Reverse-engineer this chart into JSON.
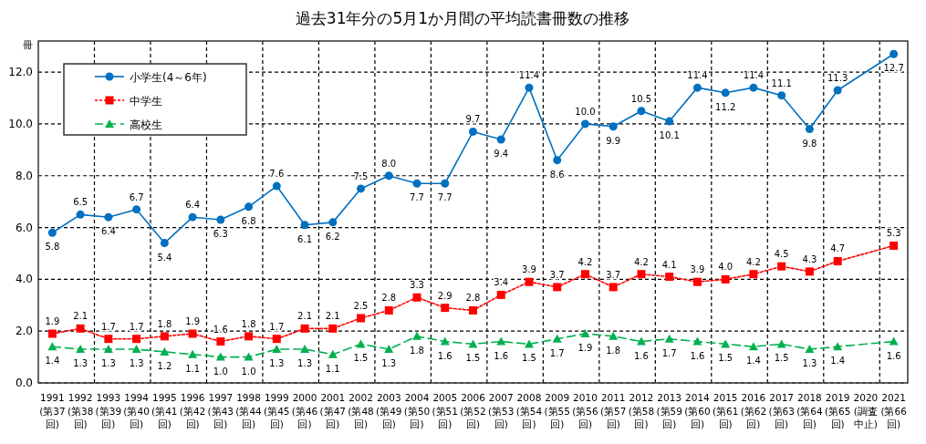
{
  "chart_data": {
    "type": "line",
    "title": "過去31年分の5月1か月間の平均読書冊数の推移",
    "ylabel": "冊",
    "categories": [
      "1991(第37回)",
      "1992(第38回)",
      "1993(第39回)",
      "1994(第40回)",
      "1995(第41回)",
      "1996(第42回)",
      "1997(第43回)",
      "1998(第44回)",
      "1999(第45回)",
      "2000(第46回)",
      "2001(第47回)",
      "2002(第48回)",
      "2003(第49回)",
      "2004(第50回)",
      "2005(第51回)",
      "2006(第52回)",
      "2007(第53回)",
      "2008(第54回)",
      "2009(第55回)",
      "2010(第56回)",
      "2011(第57回)",
      "2012(第58回)",
      "2013(第59回)",
      "2014(第60回)",
      "2015(第61回)",
      "2016(第62回)",
      "2017(第63回)",
      "2018(第64回)",
      "2019(第65回)",
      "2020(調査中止)",
      "2021(第66回)"
    ],
    "series": [
      {
        "name": "小学生(4～6年)",
        "color": "#0070c0",
        "marker": "circle",
        "line_style": "solid",
        "values": [
          5.8,
          6.5,
          6.4,
          6.7,
          5.4,
          6.4,
          6.3,
          6.8,
          7.6,
          6.1,
          6.2,
          7.5,
          8.0,
          7.7,
          7.7,
          9.7,
          9.4,
          11.4,
          8.6,
          10.0,
          9.9,
          10.5,
          10.1,
          11.4,
          11.2,
          11.4,
          11.1,
          9.8,
          11.3,
          null,
          12.7
        ],
        "value_labels": [
          "5.8",
          "6.5",
          "6.4",
          "6.7",
          "5.4",
          "6.4",
          "6.3",
          "6.8",
          "7.6",
          "6.1",
          "6.2",
          "7.5",
          "8.0",
          "7.7",
          "7.7",
          "9.7",
          "9.4",
          "11.4",
          "8.6",
          "10.0",
          "9.9",
          "10.5",
          "10.1",
          "11.4",
          "11.2",
          "11.4",
          "11.1",
          "9.8",
          "11.3",
          null,
          "12.7"
        ]
      },
      {
        "name": "中学生",
        "color": "#ff0000",
        "marker": "square",
        "line_style": "dotted",
        "values": [
          1.9,
          2.1,
          1.7,
          1.7,
          1.8,
          1.9,
          1.6,
          1.8,
          1.7,
          2.1,
          2.1,
          2.5,
          2.8,
          3.3,
          2.9,
          2.8,
          3.4,
          3.9,
          3.7,
          4.2,
          3.7,
          4.2,
          4.1,
          3.9,
          4.0,
          4.2,
          4.5,
          4.3,
          4.7,
          null,
          5.3
        ],
        "value_labels": [
          "1.9",
          "2.1",
          "1.7",
          "1.7",
          "1.8",
          "1.9",
          "1.6",
          "1.8",
          "1.7",
          "2.1",
          "2.1",
          "2.5",
          "2.8",
          "3.3",
          "2.9",
          "2.8",
          "3.4",
          "3.9",
          "3.7",
          "4.2",
          "3.7",
          "4.2",
          "4.1",
          "3.9",
          "4.0",
          "4.2",
          "4.5",
          "4.3",
          "4.7",
          null,
          "5.3"
        ]
      },
      {
        "name": "高校生",
        "color": "#00b050",
        "marker": "triangle",
        "line_style": "dashed",
        "values": [
          1.4,
          1.3,
          1.3,
          1.3,
          1.2,
          1.1,
          1.0,
          1.0,
          1.3,
          1.3,
          1.1,
          1.5,
          1.3,
          1.8,
          1.6,
          1.5,
          1.6,
          1.5,
          1.7,
          1.9,
          1.8,
          1.6,
          1.7,
          1.6,
          1.5,
          1.4,
          1.5,
          1.3,
          1.4,
          null,
          1.6
        ],
        "value_labels": [
          "1.4",
          "1.3",
          "1.3",
          "1.3",
          "1.2",
          "1.1",
          "1.0",
          "1.0",
          "1.3",
          "1.3",
          "1.1",
          "1.5",
          "1.3",
          "1.8",
          "1.6",
          "1.5",
          "1.6",
          "1.5",
          "1.7",
          "1.9",
          "1.8",
          "1.6",
          "1.7",
          "1.6",
          "1.5",
          "1.4",
          "1.5",
          "1.3",
          "1.4",
          null,
          "1.6"
        ]
      }
    ],
    "ylim": [
      0,
      13.2
    ],
    "yticks": [
      {
        "value": 0,
        "label": "0.0"
      },
      {
        "value": 2,
        "label": "2.0"
      },
      {
        "value": 4,
        "label": "4.0"
      },
      {
        "value": 6,
        "label": "6.0"
      },
      {
        "value": 8,
        "label": "8.0"
      },
      {
        "value": 10,
        "label": "10.0"
      },
      {
        "value": 12,
        "label": "12.0"
      }
    ],
    "grid": true,
    "legend": "top left"
  }
}
